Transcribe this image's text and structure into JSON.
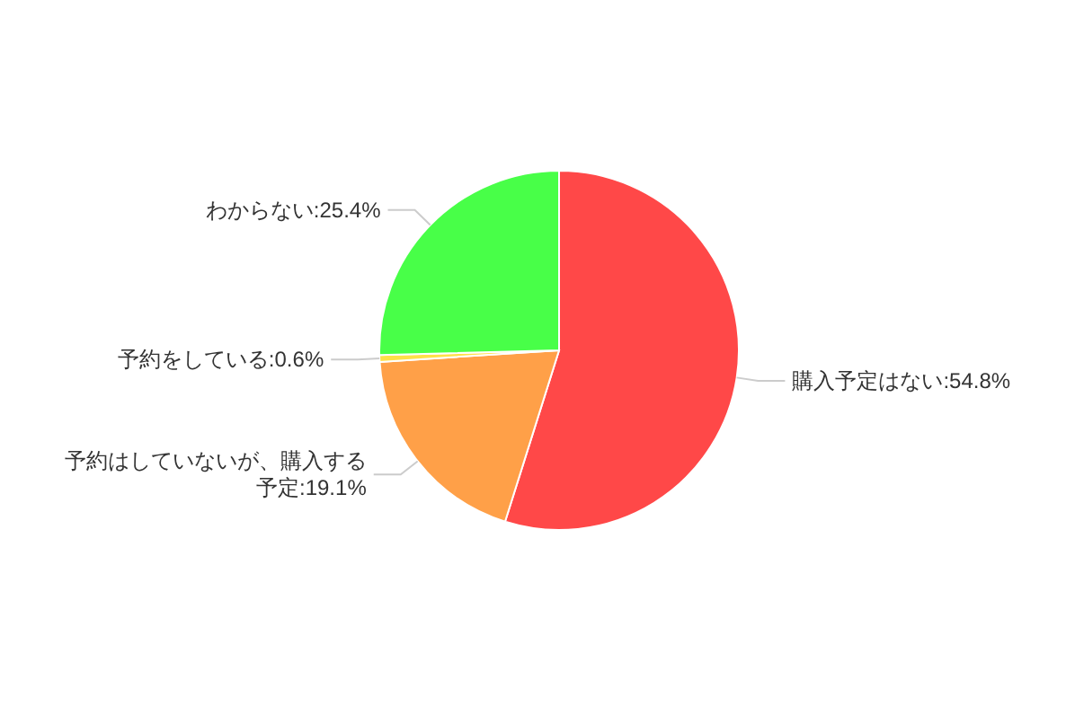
{
  "chart_data": {
    "type": "pie",
    "categories": [
      "購入予定はない",
      "予約はしていないが、購入する予定",
      "予約をしている",
      "わからない"
    ],
    "values": [
      54.8,
      19.1,
      0.6,
      25.4
    ],
    "colors": [
      "#ff4848",
      "#ffa048",
      "#ffe048",
      "#48ff48"
    ],
    "data_labels": true,
    "value_labels": [
      "54.8%",
      "19.1%",
      "0.6%",
      "25.4%"
    ]
  }
}
